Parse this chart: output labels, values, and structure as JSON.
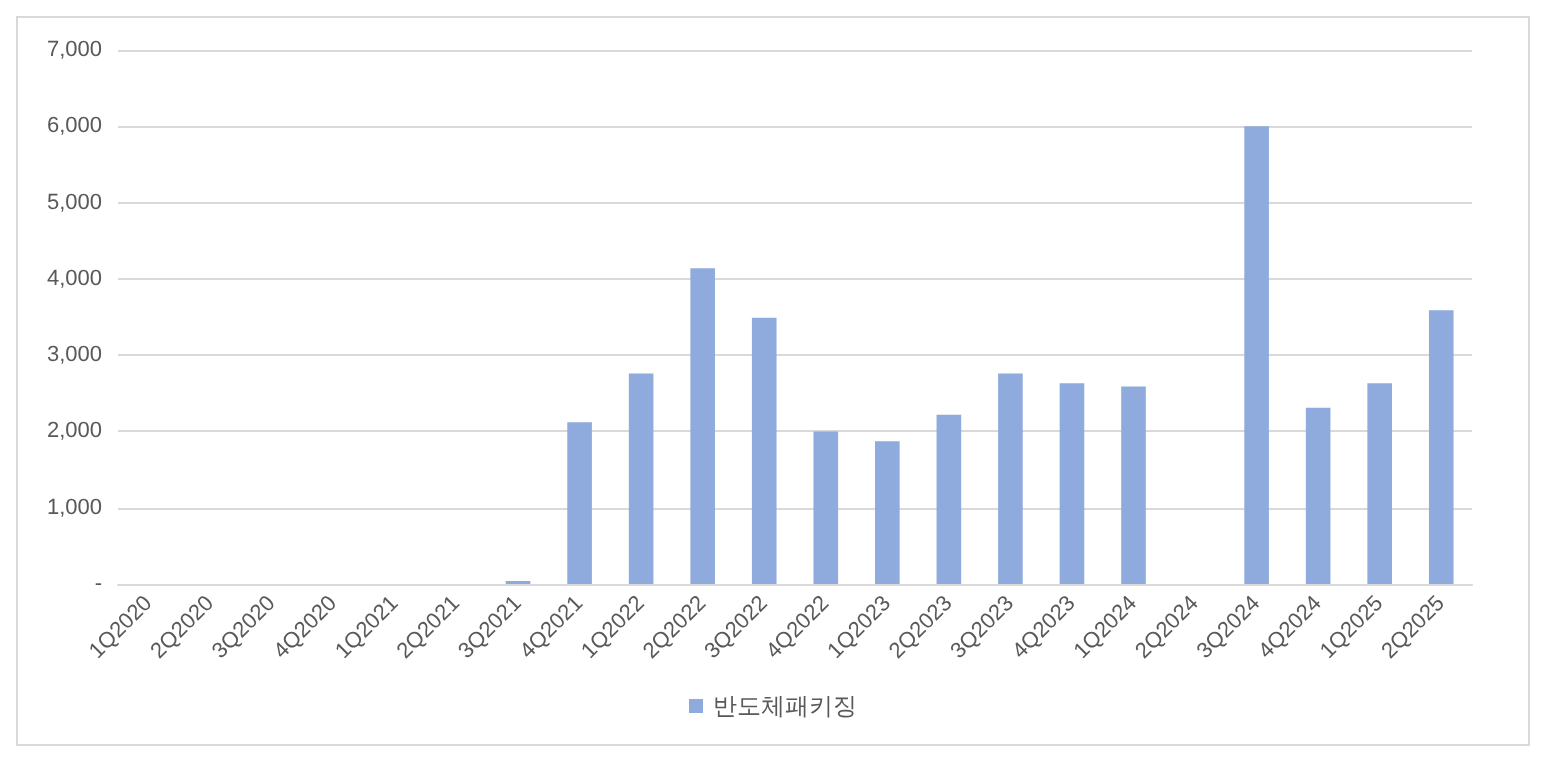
{
  "chart_data": {
    "type": "bar",
    "categories": [
      "1Q2020",
      "2Q2020",
      "3Q2020",
      "4Q2020",
      "1Q2021",
      "2Q2021",
      "3Q2021",
      "4Q2021",
      "1Q2022",
      "2Q2022",
      "3Q2022",
      "4Q2022",
      "1Q2023",
      "2Q2023",
      "3Q2023",
      "4Q2023",
      "1Q2024",
      "2Q2024",
      "3Q2024",
      "4Q2024",
      "1Q2025",
      "2Q2025"
    ],
    "series": [
      {
        "name": "반도체패키징",
        "color": "#8faadc",
        "values": [
          0,
          0,
          0,
          0,
          0,
          0,
          40,
          2120,
          2760,
          4140,
          3490,
          2000,
          1870,
          2220,
          2760,
          2630,
          2590,
          0,
          6000,
          2310,
          2630,
          3590
        ]
      }
    ],
    "ylim": [
      0,
      7000
    ],
    "yticks": [
      {
        "value": 0,
        "label": "-"
      },
      {
        "value": 1000,
        "label": "1,000"
      },
      {
        "value": 2000,
        "label": "2,000"
      },
      {
        "value": 3000,
        "label": "3,000"
      },
      {
        "value": 4000,
        "label": "4,000"
      },
      {
        "value": 5000,
        "label": "5,000"
      },
      {
        "value": 6000,
        "label": "6,000"
      },
      {
        "value": 7000,
        "label": "7,000"
      }
    ],
    "grid": "y",
    "legend": "bottom"
  }
}
